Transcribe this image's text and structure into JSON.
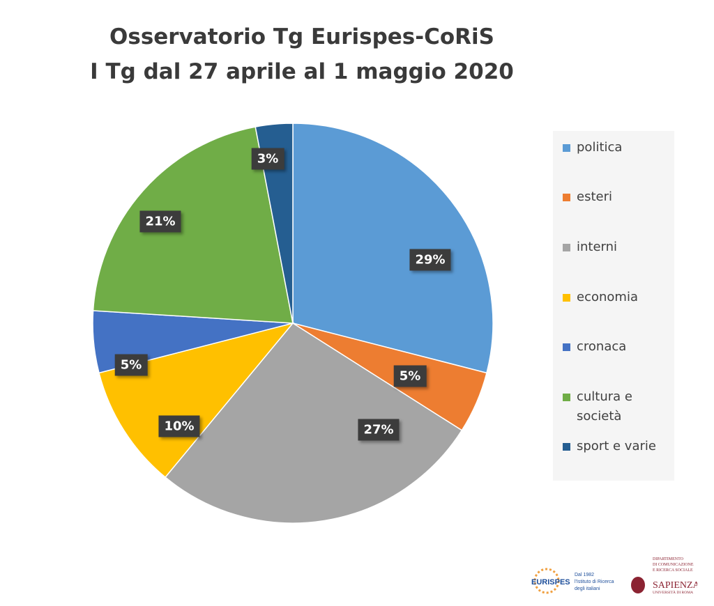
{
  "chart_data": {
    "type": "pie",
    "title": [
      "Osservatorio Tg Eurispes-CoRiS",
      "I Tg dal 27 aprile al 1 maggio 2020"
    ],
    "categories": [
      "politica",
      "esteri",
      "interni",
      "economia",
      "cronaca",
      "cultura e società",
      "sport e varie"
    ],
    "values": [
      29,
      5,
      27,
      10,
      5,
      21,
      3
    ],
    "data_labels": [
      "29%",
      "5%",
      "27%",
      "10%",
      "5%",
      "21%",
      "3%"
    ],
    "colors": [
      "#5b9bd5",
      "#ed7d31",
      "#a5a5a5",
      "#ffc000",
      "#4472c4",
      "#70ad47",
      "#255e91"
    ],
    "start_angle": "12 o'clock",
    "direction": "clockwise",
    "legend_position": "right"
  },
  "logos": {
    "eurispes": {
      "name": "EURISPES",
      "tagline": "Dal 1982 l'Istituto di Ricerca degli italiani"
    },
    "sapienza": {
      "dept": "Dipartimento di Comunicazione e Ricerca Sociale",
      "name": "SAPIENZA",
      "sub": "Università di Roma"
    }
  }
}
